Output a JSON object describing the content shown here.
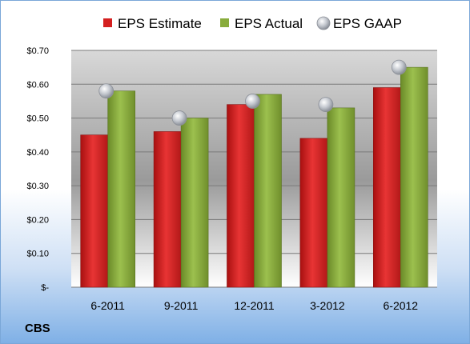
{
  "company": "CBS",
  "colors": {
    "estimate": "#d42020",
    "actual": "#88ac3c",
    "gaap": "#b8bcc4",
    "plot_bg_top": "#d8d8d8",
    "plot_bg_bottom": "#ffffff"
  },
  "chart_data": {
    "type": "bar",
    "categories": [
      "6-2011",
      "9-2011",
      "12-2011",
      "3-2012",
      "6-2012"
    ],
    "series": [
      {
        "name": "EPS Estimate",
        "kind": "bar",
        "values": [
          0.45,
          0.46,
          0.54,
          0.44,
          0.59
        ]
      },
      {
        "name": "EPS Actual",
        "kind": "bar",
        "values": [
          0.58,
          0.5,
          0.57,
          0.53,
          0.65
        ]
      },
      {
        "name": "EPS GAAP",
        "kind": "marker",
        "values": [
          0.58,
          0.5,
          0.55,
          0.54,
          0.65
        ]
      }
    ],
    "ylim": [
      0,
      0.7
    ],
    "ytick_values": [
      0,
      0.1,
      0.2,
      0.3,
      0.4,
      0.5,
      0.6,
      0.7
    ],
    "ytick_labels": [
      "$-",
      "$0.10",
      "$0.20",
      "$0.30",
      "$0.40",
      "$0.50",
      "$0.60",
      "$0.70"
    ],
    "grid": true,
    "legend_position": "top"
  }
}
